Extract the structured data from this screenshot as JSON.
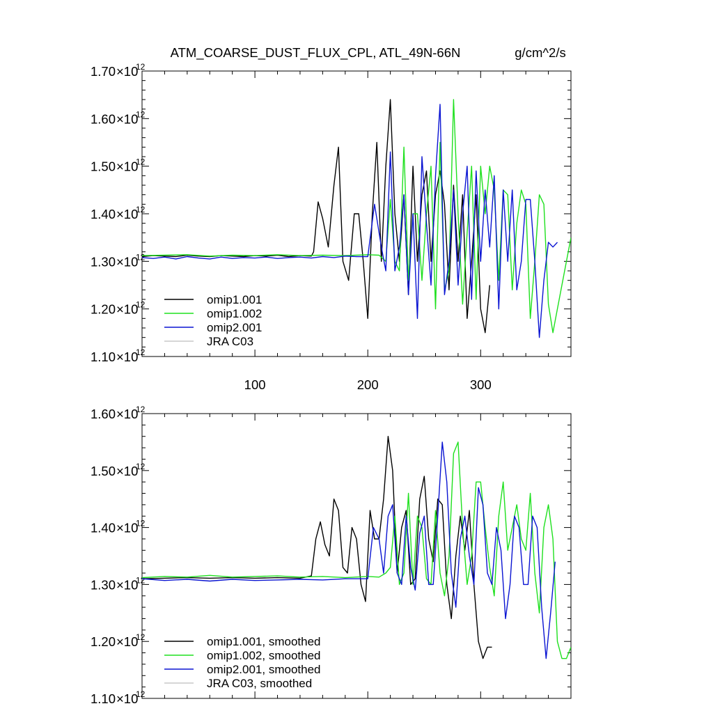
{
  "header": {
    "title": "ATM_COARSE_DUST_FLUX_CPL, ATL_49N-66N",
    "units": "g/cm^2/s"
  },
  "colors": {
    "omip1.001": "#000000",
    "omip1.002": "#1ee01e",
    "omip2.001": "#0a14d2",
    "JRA C03": "#c8c8c8"
  },
  "chart_data": [
    {
      "type": "line",
      "panel": "top",
      "xlim": [
        0,
        380
      ],
      "ylim": [
        1.1,
        1.7
      ],
      "y_exponent": "-12",
      "y_ticks": [
        "1.10",
        "1.20",
        "1.30",
        "1.40",
        "1.50",
        "1.60",
        "1.70"
      ],
      "x_ticks": [
        100,
        200,
        300
      ],
      "legend_position": "bottom-left",
      "series": [
        {
          "name": "omip1.001",
          "x": [
            0,
            10,
            20,
            30,
            40,
            50,
            60,
            70,
            80,
            90,
            100,
            110,
            120,
            130,
            140,
            150,
            152,
            156,
            160,
            165,
            170,
            174,
            178,
            183,
            188,
            192,
            196,
            200,
            204,
            208,
            212,
            216,
            220,
            224,
            228,
            232,
            236,
            240,
            244,
            248,
            252,
            256,
            260,
            264,
            268,
            272,
            276,
            280,
            284,
            288,
            292,
            296,
            300,
            304,
            308
          ],
          "y": [
            1.31,
            1.312,
            1.311,
            1.31,
            1.313,
            1.311,
            1.31,
            1.312,
            1.311,
            1.31,
            1.312,
            1.311,
            1.313,
            1.31,
            1.312,
            1.311,
            1.32,
            1.425,
            1.39,
            1.33,
            1.46,
            1.54,
            1.3,
            1.26,
            1.4,
            1.4,
            1.3,
            1.18,
            1.4,
            1.55,
            1.3,
            1.5,
            1.64,
            1.4,
            1.3,
            1.44,
            1.23,
            1.5,
            1.3,
            1.44,
            1.49,
            1.3,
            1.44,
            1.49,
            1.42,
            1.24,
            1.46,
            1.3,
            1.44,
            1.18,
            1.3,
            1.44,
            1.2,
            1.15,
            1.25
          ]
        },
        {
          "name": "omip1.002",
          "x": [
            0,
            20,
            40,
            60,
            80,
            100,
            120,
            140,
            160,
            180,
            200,
            210,
            216,
            220,
            224,
            228,
            232,
            236,
            240,
            244,
            248,
            252,
            256,
            260,
            264,
            268,
            272,
            276,
            280,
            284,
            288,
            292,
            296,
            300,
            304,
            308,
            312,
            316,
            320,
            324,
            328,
            332,
            336,
            340,
            344,
            348,
            352,
            356,
            360,
            364,
            368,
            372,
            376,
            380
          ],
          "y": [
            1.312,
            1.313,
            1.314,
            1.311,
            1.313,
            1.312,
            1.314,
            1.312,
            1.313,
            1.312,
            1.314,
            1.313,
            1.3,
            1.43,
            1.3,
            1.28,
            1.54,
            1.26,
            1.4,
            1.4,
            1.26,
            1.4,
            1.5,
            1.2,
            1.55,
            1.24,
            1.28,
            1.64,
            1.4,
            1.21,
            1.36,
            1.5,
            1.22,
            1.5,
            1.4,
            1.5,
            1.45,
            1.26,
            1.45,
            1.44,
            1.24,
            1.38,
            1.45,
            1.42,
            1.18,
            1.3,
            1.44,
            1.42,
            1.21,
            1.15,
            1.2,
            1.25,
            1.3,
            1.35
          ]
        },
        {
          "name": "omip2.001",
          "x": [
            0,
            10,
            20,
            30,
            40,
            50,
            60,
            70,
            80,
            90,
            100,
            110,
            120,
            130,
            140,
            150,
            160,
            170,
            180,
            190,
            200,
            206,
            212,
            216,
            220,
            224,
            228,
            232,
            236,
            240,
            244,
            248,
            252,
            256,
            260,
            264,
            268,
            272,
            276,
            280,
            284,
            288,
            292,
            296,
            300,
            304,
            308,
            312,
            316,
            320,
            324,
            328,
            332,
            336,
            340,
            344,
            348,
            352,
            356,
            360,
            364,
            368
          ],
          "y": [
            1.308,
            1.306,
            1.309,
            1.305,
            1.31,
            1.307,
            1.305,
            1.309,
            1.306,
            1.308,
            1.307,
            1.309,
            1.306,
            1.308,
            1.309,
            1.307,
            1.31,
            1.308,
            1.311,
            1.31,
            1.31,
            1.42,
            1.33,
            1.28,
            1.53,
            1.28,
            1.33,
            1.44,
            1.23,
            1.4,
            1.18,
            1.52,
            1.38,
            1.25,
            1.48,
            1.63,
            1.23,
            1.3,
            1.45,
            1.25,
            1.4,
            1.5,
            1.22,
            1.49,
            1.3,
            1.45,
            1.33,
            1.48,
            1.2,
            1.45,
            1.3,
            1.45,
            1.24,
            1.3,
            1.43,
            1.43,
            1.3,
            1.14,
            1.26,
            1.34,
            1.33,
            1.34
          ]
        }
      ]
    },
    {
      "type": "line",
      "panel": "bottom",
      "xlim": [
        0,
        380
      ],
      "ylim": [
        1.1,
        1.6
      ],
      "y_exponent": "-12",
      "y_ticks": [
        "1.10",
        "1.20",
        "1.30",
        "1.40",
        "1.50",
        "1.60"
      ],
      "legend_position": "bottom-left",
      "series": [
        {
          "name": "omip1.001, smoothed",
          "x": [
            0,
            20,
            40,
            60,
            80,
            100,
            120,
            140,
            150,
            154,
            158,
            162,
            166,
            170,
            174,
            178,
            182,
            186,
            190,
            194,
            198,
            202,
            206,
            210,
            214,
            218,
            222,
            226,
            230,
            234,
            238,
            242,
            246,
            250,
            254,
            258,
            262,
            266,
            270,
            274,
            278,
            282,
            286,
            290,
            294,
            298,
            302,
            306,
            310
          ],
          "y": [
            1.31,
            1.311,
            1.312,
            1.311,
            1.312,
            1.311,
            1.312,
            1.311,
            1.315,
            1.38,
            1.41,
            1.37,
            1.35,
            1.45,
            1.43,
            1.33,
            1.32,
            1.4,
            1.38,
            1.3,
            1.27,
            1.43,
            1.38,
            1.38,
            1.45,
            1.56,
            1.5,
            1.32,
            1.4,
            1.43,
            1.3,
            1.31,
            1.45,
            1.49,
            1.38,
            1.34,
            1.45,
            1.44,
            1.3,
            1.24,
            1.35,
            1.42,
            1.36,
            1.43,
            1.3,
            1.2,
            1.17,
            1.19,
            1.19
          ]
        },
        {
          "name": "omip1.002, smoothed",
          "x": [
            0,
            20,
            40,
            60,
            80,
            100,
            120,
            140,
            160,
            180,
            200,
            210,
            216,
            220,
            224,
            228,
            232,
            236,
            240,
            244,
            248,
            252,
            256,
            260,
            264,
            268,
            272,
            276,
            280,
            284,
            288,
            292,
            296,
            300,
            304,
            308,
            312,
            316,
            320,
            324,
            328,
            332,
            336,
            340,
            344,
            348,
            352,
            356,
            360,
            364,
            368,
            372,
            376,
            380
          ],
          "y": [
            1.312,
            1.314,
            1.313,
            1.316,
            1.313,
            1.314,
            1.315,
            1.313,
            1.314,
            1.312,
            1.314,
            1.313,
            1.32,
            1.33,
            1.42,
            1.3,
            1.32,
            1.46,
            1.3,
            1.42,
            1.4,
            1.31,
            1.3,
            1.43,
            1.32,
            1.28,
            1.35,
            1.53,
            1.55,
            1.4,
            1.3,
            1.35,
            1.48,
            1.48,
            1.4,
            1.33,
            1.28,
            1.42,
            1.48,
            1.36,
            1.4,
            1.44,
            1.38,
            1.36,
            1.46,
            1.32,
            1.25,
            1.4,
            1.44,
            1.38,
            1.2,
            1.17,
            1.17,
            1.19
          ]
        },
        {
          "name": "omip2.001, smoothed",
          "x": [
            0,
            20,
            40,
            60,
            80,
            100,
            120,
            140,
            160,
            180,
            200,
            205,
            210,
            214,
            218,
            222,
            226,
            230,
            234,
            238,
            242,
            246,
            250,
            254,
            258,
            262,
            266,
            270,
            274,
            278,
            282,
            286,
            290,
            294,
            298,
            302,
            306,
            310,
            314,
            318,
            322,
            326,
            330,
            334,
            338,
            342,
            346,
            350,
            354,
            358,
            362,
            366
          ],
          "y": [
            1.31,
            1.307,
            1.309,
            1.306,
            1.309,
            1.307,
            1.308,
            1.309,
            1.308,
            1.31,
            1.31,
            1.4,
            1.38,
            1.32,
            1.42,
            1.44,
            1.32,
            1.3,
            1.42,
            1.33,
            1.29,
            1.39,
            1.42,
            1.3,
            1.3,
            1.42,
            1.55,
            1.48,
            1.32,
            1.26,
            1.38,
            1.42,
            1.35,
            1.3,
            1.47,
            1.44,
            1.32,
            1.3,
            1.4,
            1.36,
            1.24,
            1.3,
            1.42,
            1.4,
            1.3,
            1.3,
            1.42,
            1.4,
            1.26,
            1.17,
            1.25,
            1.34
          ]
        }
      ]
    }
  ]
}
